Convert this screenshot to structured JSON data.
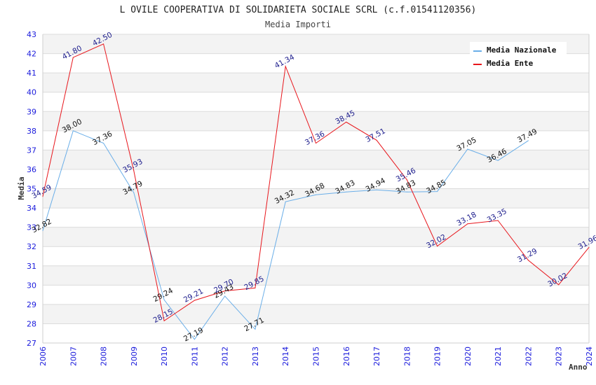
{
  "chart_data": {
    "type": "line",
    "title": "L OVILE COOPERATIVA DI SOLIDARIETA SOCIALE SCRL (c.f.01541120356)",
    "subtitle": "Media Importi",
    "xlabel": "Anno",
    "ylabel": "Media",
    "ylim": [
      27,
      43
    ],
    "yticks": [
      "27",
      "28",
      "29",
      "30",
      "31",
      "32",
      "33",
      "34",
      "35",
      "36",
      "37",
      "38",
      "39",
      "40",
      "41",
      "42",
      "43"
    ],
    "categories": [
      "2006",
      "2007",
      "2008",
      "2009",
      "2010",
      "2011",
      "2012",
      "2013",
      "2014",
      "2015",
      "2016",
      "2017",
      "2018",
      "2019",
      "2020",
      "2021",
      "2022",
      "2023",
      "2024"
    ],
    "grid": true,
    "legend_position": "top-right",
    "series": [
      {
        "name": "Media Nazionale",
        "color": "#6aaee8",
        "values": [
          32.82,
          38.0,
          37.36,
          34.79,
          29.24,
          27.19,
          29.43,
          27.71,
          34.32,
          34.68,
          34.83,
          34.94,
          34.83,
          34.85,
          37.05,
          36.46,
          37.49,
          null,
          null
        ],
        "labels": [
          "32.82",
          "38.00",
          "37.36",
          "34.79",
          "29.24",
          "27.19",
          "29.43",
          "27.71",
          "34.32",
          "34.68",
          "34.83",
          "34.94",
          "34.83",
          "34.85",
          "37.05",
          "36.46",
          "37.49",
          null,
          null
        ]
      },
      {
        "name": "Media Ente",
        "color": "#e8161c",
        "values": [
          34.59,
          41.8,
          42.5,
          35.93,
          28.15,
          29.21,
          29.7,
          29.85,
          41.34,
          37.36,
          38.45,
          37.51,
          35.46,
          32.02,
          33.18,
          33.35,
          31.29,
          30.02,
          31.96
        ],
        "labels": [
          "34.59",
          "41.80",
          "42.50",
          "35.93",
          "28.15",
          "29.21",
          "29.70",
          "29.85",
          "41.34",
          "37.36",
          "38.45",
          "37.51",
          "35.46",
          "32.02",
          "33.18",
          "33.35",
          "31.29",
          "30.02",
          "31.96"
        ]
      }
    ]
  }
}
